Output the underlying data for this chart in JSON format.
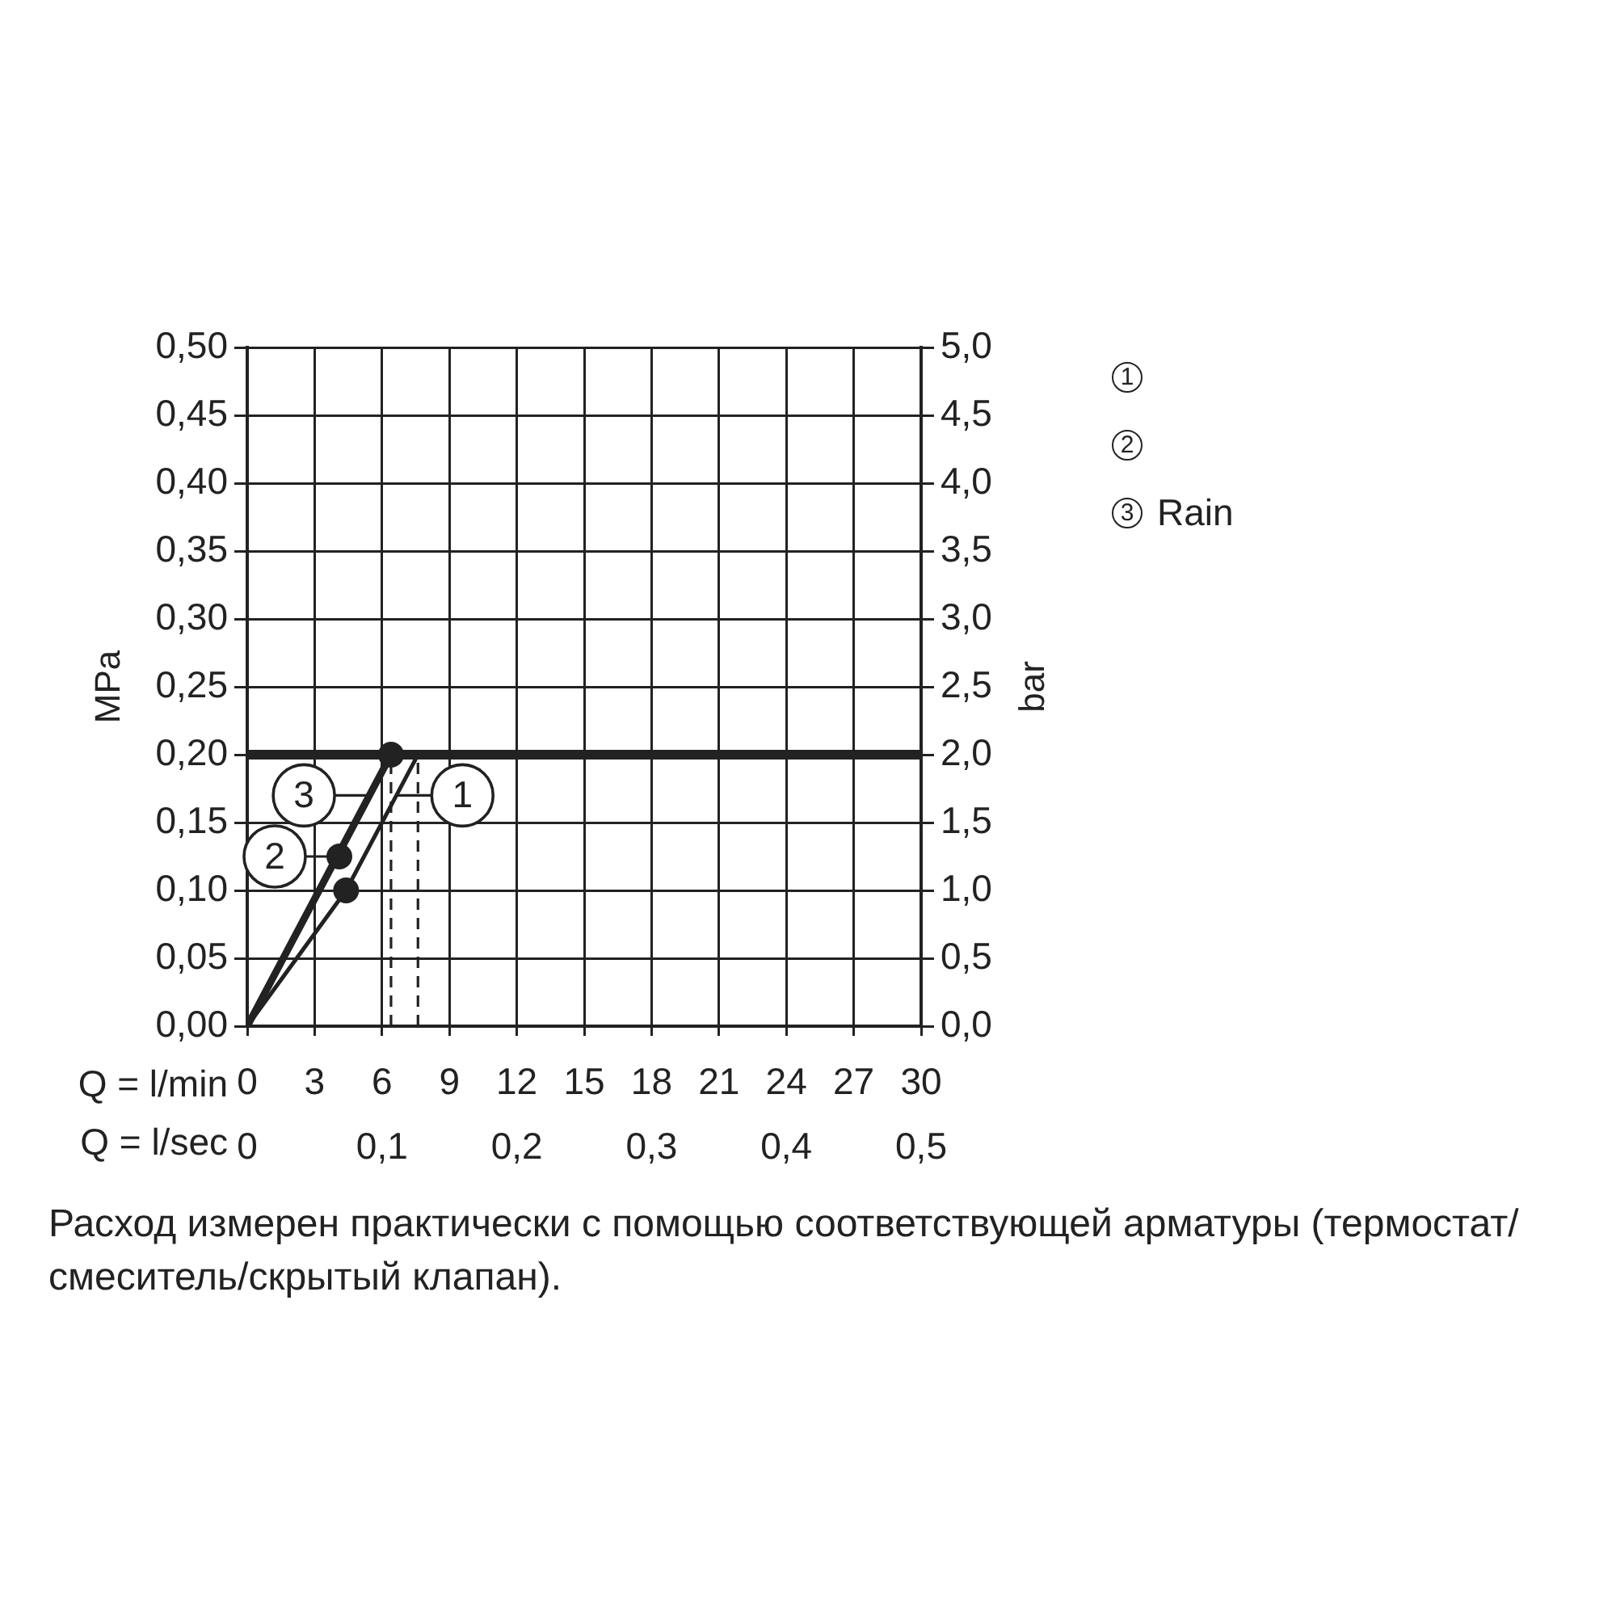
{
  "chart_data": {
    "type": "line",
    "xlabel": "Q = l/min",
    "x2label": "Q = l/sec",
    "ylabel": "MPa",
    "y2label": "bar",
    "xlim": [
      0,
      30
    ],
    "xticks": [
      0,
      3,
      6,
      9,
      12,
      15,
      18,
      21,
      24,
      27,
      30
    ],
    "x2lim": [
      0,
      0.5
    ],
    "x2ticks": [
      0,
      {
        "value": 0.1,
        "label": "0,1"
      },
      {
        "value": 0.2,
        "label": "0,2"
      },
      {
        "value": 0.3,
        "label": "0,3"
      },
      {
        "value": 0.4,
        "label": "0,4"
      },
      {
        "value": 0.5,
        "label": "0,5"
      }
    ],
    "ylim": [
      0,
      0.5
    ],
    "yticks": [
      {
        "value": 0,
        "label": "0,00"
      },
      {
        "value": 0.05,
        "label": "0,05"
      },
      {
        "value": 0.1,
        "label": "0,10"
      },
      {
        "value": 0.15,
        "label": "0,15"
      },
      {
        "value": 0.2,
        "label": "0,20"
      },
      {
        "value": 0.25,
        "label": "0,25"
      },
      {
        "value": 0.3,
        "label": "0,30"
      },
      {
        "value": 0.35,
        "label": "0,35"
      },
      {
        "value": 0.4,
        "label": "0,40"
      },
      {
        "value": 0.45,
        "label": "0,45"
      },
      {
        "value": 0.5,
        "label": "0,50"
      }
    ],
    "y2lim": [
      0,
      5
    ],
    "y2ticks": [
      {
        "value": 0,
        "label": "0,0"
      },
      {
        "value": 0.5,
        "label": "0,5"
      },
      {
        "value": 1,
        "label": "1,0"
      },
      {
        "value": 1.5,
        "label": "1,5"
      },
      {
        "value": 2,
        "label": "2,0"
      },
      {
        "value": 2.5,
        "label": "2,5"
      },
      {
        "value": 3,
        "label": "3,0"
      },
      {
        "value": 3.5,
        "label": "3,5"
      },
      {
        "value": 4,
        "label": "4,0"
      },
      {
        "value": 4.5,
        "label": "4,5"
      },
      {
        "value": 5,
        "label": "5,0"
      }
    ],
    "grid": true,
    "marker": "none",
    "line_style": "solid",
    "legend": "right",
    "series": [
      {
        "color": "#222222",
        "x": [
          0,
          4.4,
          7.6
        ],
        "values": [
          0,
          0.1,
          0.2
        ]
      },
      {
        "type": "scatter",
        "color": "#222222",
        "marker": "circle",
        "x": [
          4.1
        ],
        "values": [
          0.125
        ]
      },
      {
        "name": "Rain",
        "color": "#222222",
        "x": [
          0,
          6.4
        ],
        "values": [
          0,
          0.2
        ]
      },
      {
        "type": "scatter",
        "color": "#222222",
        "marker": "circle",
        "x": [
          6.4,
          4.4
        ],
        "values": [
          0.2,
          0.1
        ]
      },
      {
        "type": "line",
        "line_style": "dashed",
        "color": "#222222",
        "x": [
          6.4,
          6.4
        ],
        "values": [
          0,
          0.2
        ]
      },
      {
        "type": "line",
        "line_style": "dashed",
        "color": "#222222",
        "x": [
          7.6,
          7.6
        ],
        "values": [
          0,
          0.2
        ]
      }
    ],
    "ref_lines": [
      {
        "axis": "y",
        "value": 0.2,
        "color": "#222222"
      }
    ],
    "annotations": [
      {
        "text": "1",
        "x": 6.7,
        "y": 0.17
      },
      {
        "text": "2",
        "x": 4.1,
        "y": 0.125
      },
      {
        "text": "3",
        "x": 5.4,
        "y": 0.17
      },
      "Расход измерен практически с помощью соответствующей арматуры (термостат/смеситель/скрытый клапан)."
    ]
  }
}
